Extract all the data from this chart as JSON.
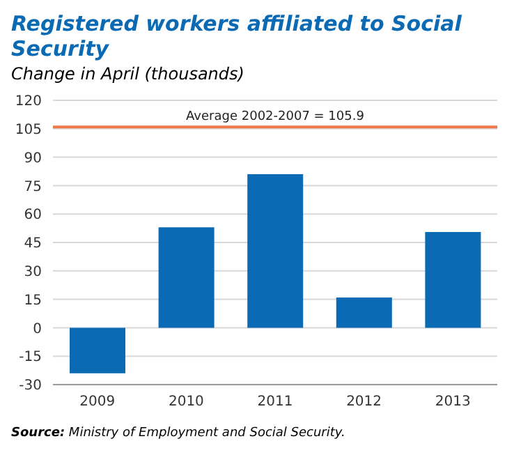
{
  "chart_data": {
    "type": "bar",
    "title": "Registered workers affiliated to Social Security",
    "subtitle": "Change in April (thousands)",
    "categories": [
      "2009",
      "2010",
      "2011",
      "2012",
      "2013"
    ],
    "values": [
      -24,
      53,
      81,
      16,
      50.5
    ],
    "color": "#0a6ab4",
    "ylim": [
      -30,
      120
    ],
    "yticks": [
      -30,
      -15,
      0,
      15,
      30,
      45,
      60,
      75,
      90,
      105,
      120
    ],
    "grid": "y",
    "ref_lines": [
      {
        "axis": "y",
        "value": 105.9,
        "label": "Average 2002-2007 = 105.9",
        "color": "#f07a4a"
      }
    ],
    "annotations": [
      "Source: Ministry of Employment and Social Security."
    ]
  }
}
